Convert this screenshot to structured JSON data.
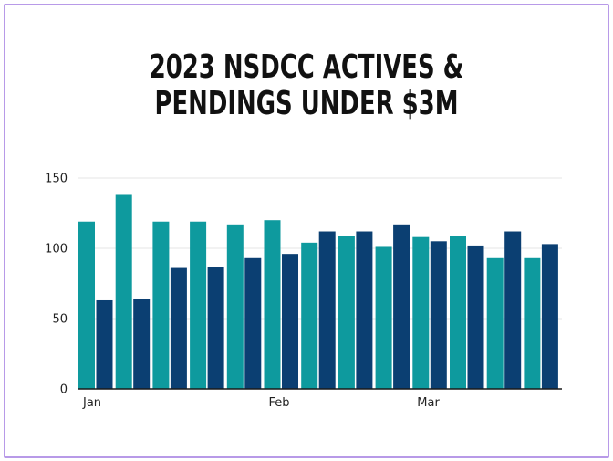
{
  "chart_data": {
    "type": "bar",
    "title_lines": [
      "2023 NSDCC ACTIVES &",
      "PENDINGS UNDER $3M"
    ],
    "series": [
      {
        "color": "#0e9a9e",
        "values": [
          119,
          138,
          119,
          119,
          117,
          120,
          104,
          109,
          101,
          108,
          109,
          93,
          93
        ]
      },
      {
        "color": "#0b3f72",
        "values": [
          63,
          64,
          86,
          87,
          93,
          96,
          112,
          112,
          117,
          105,
          102,
          112,
          103
        ]
      }
    ],
    "ylim": [
      0,
      150
    ],
    "yticks": [
      0,
      50,
      100,
      150
    ],
    "xtick_labels": [
      {
        "label": "Jan",
        "group": 0
      },
      {
        "label": "Feb",
        "group": 5
      },
      {
        "label": "Mar",
        "group": 9
      }
    ],
    "grid": true
  }
}
